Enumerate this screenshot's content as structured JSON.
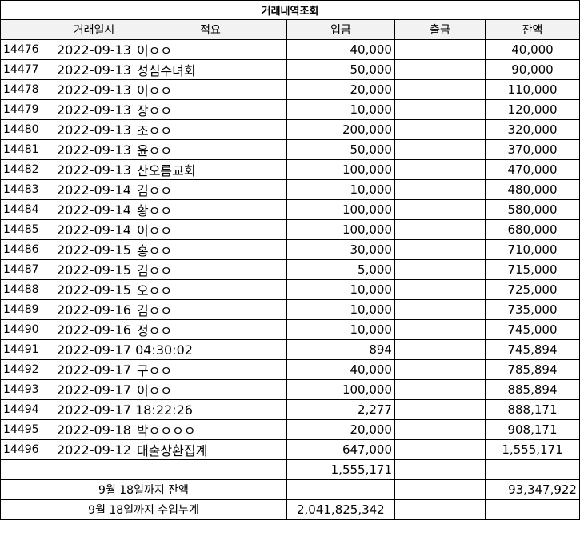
{
  "title": "거래내역조회",
  "headers": [
    "",
    "거래일시",
    "적요",
    "입금",
    "출금",
    "잔액"
  ],
  "rows": [
    {
      "no": "14476",
      "date": "2022-09-13",
      "memo": "이ㅇㅇ",
      "deposit": "40,000",
      "withdraw": "",
      "balance": "40,000"
    },
    {
      "no": "14477",
      "date": "2022-09-13",
      "memo": "성심수녀회",
      "deposit": "50,000",
      "withdraw": "",
      "balance": "90,000"
    },
    {
      "no": "14478",
      "date": "2022-09-13",
      "memo": "이ㅇㅇ",
      "deposit": "20,000",
      "withdraw": "",
      "balance": "110,000"
    },
    {
      "no": "14479",
      "date": "2022-09-13",
      "memo": "장ㅇㅇ",
      "deposit": "10,000",
      "withdraw": "",
      "balance": "120,000"
    },
    {
      "no": "14480",
      "date": "2022-09-13",
      "memo": "조ㅇㅇ",
      "deposit": "200,000",
      "withdraw": "",
      "balance": "320,000"
    },
    {
      "no": "14481",
      "date": "2022-09-13",
      "memo": "윤ㅇㅇ",
      "deposit": "50,000",
      "withdraw": "",
      "balance": "370,000"
    },
    {
      "no": "14482",
      "date": "2022-09-13",
      "memo": "산오름교회",
      "deposit": "100,000",
      "withdraw": "",
      "balance": "470,000"
    },
    {
      "no": "14483",
      "date": "2022-09-14",
      "memo": "김ㅇㅇ",
      "deposit": "10,000",
      "withdraw": "",
      "balance": "480,000"
    },
    {
      "no": "14484",
      "date": "2022-09-14",
      "memo": "황ㅇㅇ",
      "deposit": "100,000",
      "withdraw": "",
      "balance": "580,000"
    },
    {
      "no": "14485",
      "date": "2022-09-14",
      "memo": "이ㅇㅇ",
      "deposit": "100,000",
      "withdraw": "",
      "balance": "680,000"
    },
    {
      "no": "14486",
      "date": "2022-09-15",
      "memo": "홍ㅇㅇ",
      "deposit": "30,000",
      "withdraw": "",
      "balance": "710,000"
    },
    {
      "no": "14487",
      "date": "2022-09-15",
      "memo": "김ㅇㅇ",
      "deposit": "5,000",
      "withdraw": "",
      "balance": "715,000"
    },
    {
      "no": "14488",
      "date": "2022-09-15",
      "memo": "오ㅇㅇ",
      "deposit": "10,000",
      "withdraw": "",
      "balance": "725,000"
    },
    {
      "no": "14489",
      "date": "2022-09-16",
      "memo": "김ㅇㅇ",
      "deposit": "10,000",
      "withdraw": "",
      "balance": "735,000"
    },
    {
      "no": "14490",
      "date": "2022-09-16",
      "memo": "정ㅇㅇ",
      "deposit": "10,000",
      "withdraw": "",
      "balance": "745,000"
    },
    {
      "no": "14491",
      "date": "2022-09-17 04:30:02",
      "memo": "",
      "deposit": "894",
      "withdraw": "",
      "balance": "745,894"
    },
    {
      "no": "14492",
      "date": "2022-09-17",
      "memo": "구ㅇㅇ",
      "deposit": "40,000",
      "withdraw": "",
      "balance": "785,894"
    },
    {
      "no": "14493",
      "date": "2022-09-17",
      "memo": "이ㅇㅇ",
      "deposit": "100,000",
      "withdraw": "",
      "balance": "885,894"
    },
    {
      "no": "14494",
      "date": "2022-09-17 18:22:26",
      "memo": "",
      "deposit": "2,277",
      "withdraw": "",
      "balance": "888,171"
    },
    {
      "no": "14495",
      "date": "2022-09-18",
      "memo": "박ㅇㅇㅇㅇ",
      "deposit": "20,000",
      "withdraw": "",
      "balance": "908,171"
    },
    {
      "no": "14496",
      "date": "2022-09-12",
      "memo": "대출상환집계",
      "deposit": "647,000",
      "withdraw": "",
      "balance": "1,555,171"
    }
  ],
  "subtotal": "1,555,171",
  "summary": {
    "balance_label": "9월 18일까지 잔액",
    "balance_value": "93,347,922",
    "income_label": "9월 18일까지 수입누계",
    "income_value": "2,041,825,342"
  }
}
